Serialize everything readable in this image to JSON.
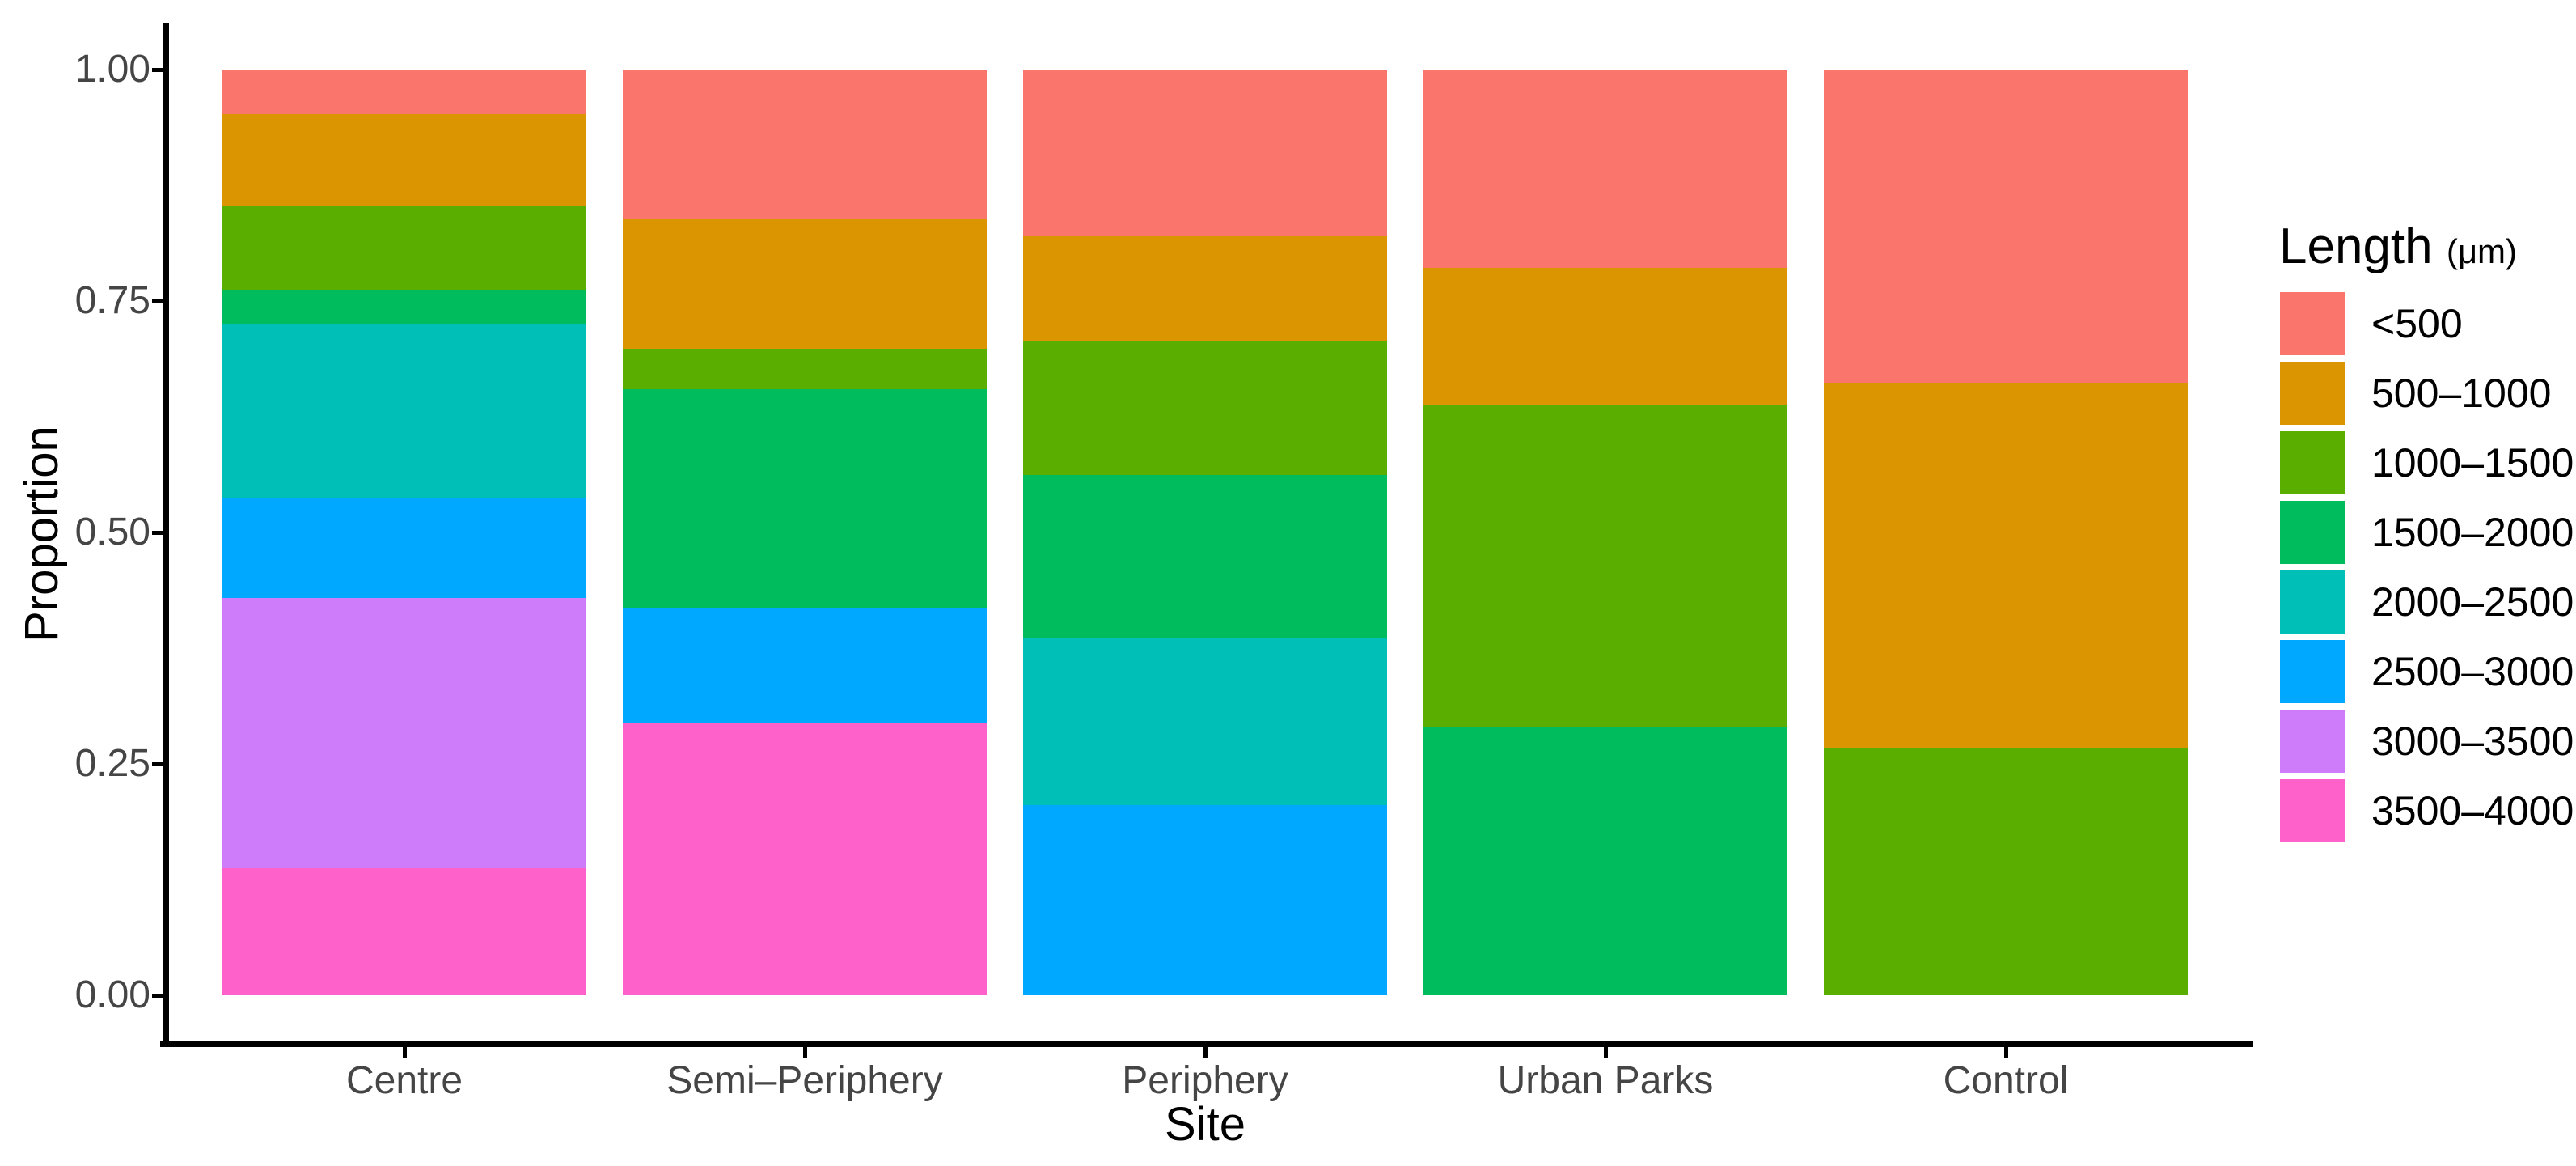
{
  "chart_data": {
    "type": "bar",
    "stacking": "fill",
    "orientation": "vertical",
    "title": "",
    "xlabel": "Site",
    "ylabel": "Proportion",
    "categories": [
      "Centre",
      "Semi–Periphery",
      "Periphery",
      "Urban Parks",
      "Control"
    ],
    "y_ticks": [
      "1.00",
      "0.75",
      "0.50",
      "0.25",
      "0.00"
    ],
    "ylim": [
      0,
      1
    ],
    "grid": false,
    "legend_position": "right",
    "legend_title": "Length",
    "legend_unit": "(μm)",
    "series": [
      {
        "name": "<500",
        "color": "#FA766C",
        "values": [
          0.048,
          0.162,
          0.18,
          0.214,
          0.338
        ]
      },
      {
        "name": "500–1000",
        "color": "#DB9500",
        "values": [
          0.099,
          0.14,
          0.114,
          0.148,
          0.395
        ]
      },
      {
        "name": "1000–1500",
        "color": "#59AE00",
        "values": [
          0.091,
          0.043,
          0.144,
          0.348,
          0.267
        ]
      },
      {
        "name": "1500–2000",
        "color": "#00BC5C",
        "values": [
          0.037,
          0.237,
          0.176,
          0.29,
          0.0
        ]
      },
      {
        "name": "2000–2500",
        "color": "#00BFB7",
        "values": [
          0.188,
          0.0,
          0.181,
          0.0,
          0.0
        ]
      },
      {
        "name": "2500–3000",
        "color": "#00A9FF",
        "values": [
          0.108,
          0.124,
          0.205,
          0.0,
          0.0
        ]
      },
      {
        "name": "3000–3500",
        "color": "#CF7CFB",
        "values": [
          0.292,
          0.0,
          0.0,
          0.0,
          0.0
        ]
      },
      {
        "name": "3500–4000",
        "color": "#FF61CA",
        "values": [
          0.137,
          0.294,
          0.0,
          0.0,
          0.0
        ]
      }
    ]
  }
}
